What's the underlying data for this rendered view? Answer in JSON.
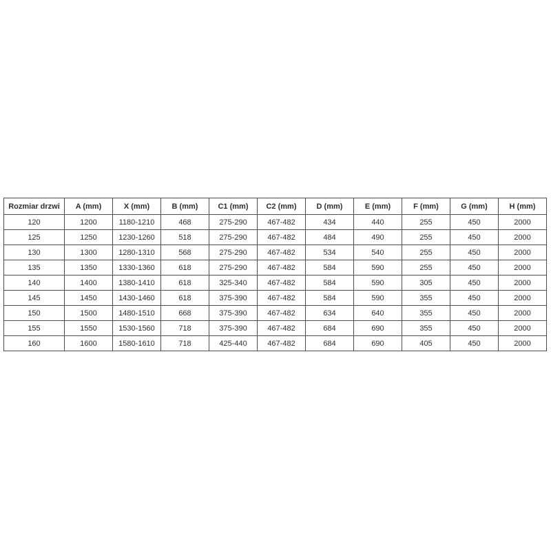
{
  "colors": {
    "border": "#4d4d4d",
    "text": "#2e2e2e",
    "background": "#ffffff"
  },
  "chart_data": {
    "type": "table",
    "title": "",
    "headers": [
      "Rozmiar drzwi",
      "A (mm)",
      "X (mm)",
      "B (mm)",
      "C1 (mm)",
      "C2 (mm)",
      "D (mm)",
      "E (mm)",
      "F (mm)",
      "G (mm)",
      "H (mm)"
    ],
    "rows": [
      [
        "120",
        "1200",
        "1180-1210",
        "468",
        "275-290",
        "467-482",
        "434",
        "440",
        "255",
        "450",
        "2000"
      ],
      [
        "125",
        "1250",
        "1230-1260",
        "518",
        "275-290",
        "467-482",
        "484",
        "490",
        "255",
        "450",
        "2000"
      ],
      [
        "130",
        "1300",
        "1280-1310",
        "568",
        "275-290",
        "467-482",
        "534",
        "540",
        "255",
        "450",
        "2000"
      ],
      [
        "135",
        "1350",
        "1330-1360",
        "618",
        "275-290",
        "467-482",
        "584",
        "590",
        "255",
        "450",
        "2000"
      ],
      [
        "140",
        "1400",
        "1380-1410",
        "618",
        "325-340",
        "467-482",
        "584",
        "590",
        "305",
        "450",
        "2000"
      ],
      [
        "145",
        "1450",
        "1430-1460",
        "618",
        "375-390",
        "467-482",
        "584",
        "590",
        "355",
        "450",
        "2000"
      ],
      [
        "150",
        "1500",
        "1480-1510",
        "668",
        "375-390",
        "467-482",
        "634",
        "640",
        "355",
        "450",
        "2000"
      ],
      [
        "155",
        "1550",
        "1530-1560",
        "718",
        "375-390",
        "467-482",
        "684",
        "690",
        "355",
        "450",
        "2000"
      ],
      [
        "160",
        "1600",
        "1580-1610",
        "718",
        "425-440",
        "467-482",
        "684",
        "690",
        "405",
        "450",
        "2000"
      ]
    ],
    "layout": {
      "grid": true,
      "first_column_label": "Rozmiar drzwi",
      "num_data_rows": 9,
      "num_columns": 11
    }
  }
}
